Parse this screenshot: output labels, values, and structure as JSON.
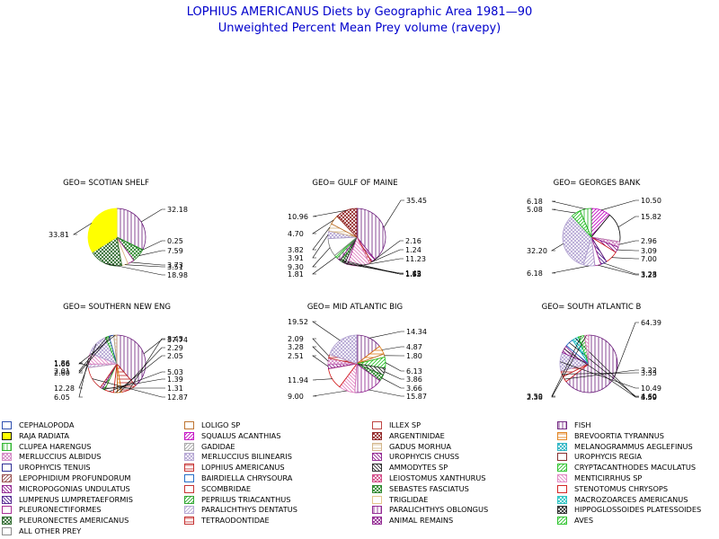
{
  "title": "LOPHIUS AMERICANUS Diets by Geographic Area 1981—90",
  "subtitle": "Unweighted Percent Mean Prey volume (ravepy)",
  "chart_data": {
    "type": "pie",
    "categories": [
      "CEPHALOPODA",
      "LOLIGO SP",
      "ILLEX SP",
      "FISH",
      "RAJA RADIATA",
      "SQUALUS ACANTHIAS",
      "ARGENTINIDAE",
      "BREVOORTIA TYRANNUS",
      "CLUPEA HARENGUS",
      "GADIDAE",
      "GADUS MORHUA",
      "MELANOGRAMMUS AEGLEFINUS",
      "MERLUCCIUS ALBIDUS",
      "MERLUCCIUS BILINEARIS",
      "UROPHYCIS CHUSS",
      "UROPHYCIS REGIA",
      "UROPHYCIS TENUIS",
      "LOPHIUS AMERICANUS",
      "AMMODYTES SP",
      "CRYPTACANTHODES MACULATUS",
      "LEPOPHIDIUM PROFUNDORUM",
      "BAIRDIELLA CHRYSOURA",
      "LEIOSTOMUS XANTHURUS",
      "MENTICIRRHUS SP",
      "MICROPOGONIAS UNDULATUS",
      "SCOMBRIDAE",
      "SEBASTES FASCIATUS",
      "STENOTOMUS CHRYSOPS",
      "LUMPENUS LUMPRETAEFORMIS",
      "PEPRILUS TRIACANTHUS",
      "TRIGLIDAE",
      "MACROZOARCES AMERICANUS",
      "PLEURONECTIFORMES",
      "PARALICHTHYS DENTATUS",
      "PARALICHTHYS OBLONGUS",
      "HIPPOGLOSSOIDES PLATESSOIDES",
      "PLEURONECTES AMERICANUS",
      "TETRAODONTIDAE",
      "ANIMAL REMAINS",
      "AVES",
      "ALL OTHER PREY"
    ],
    "pies": [
      {
        "label": "GEO= SCOTIAN SHELF",
        "slices": [
          {
            "prey": "FISH",
            "value": 32.18
          },
          {
            "prey": "CRYPTACANTHODES MACULATUS",
            "value": 0.25
          },
          {
            "prey": "SEBASTES FASCIATUS",
            "value": 7.59
          },
          {
            "prey": "PLEURONECTIFORMES",
            "value": 3.73
          },
          {
            "prey": "TRIGLIDAE",
            "value": 3.51
          },
          {
            "prey": "PLEURONECTES AMERICANUS",
            "value": 18.98
          },
          {
            "prey": "RAJA RADIATA",
            "value": 33.81
          }
        ]
      },
      {
        "label": "GEO= GULF OF MAINE",
        "slices": [
          {
            "prey": "FISH",
            "value": 35.45
          },
          {
            "prey": "UROPHYCIS CHUSS",
            "value": 2.16
          },
          {
            "prey": "LOPHIUS AMERICANUS",
            "value": 1.24
          },
          {
            "prey": "MENTICIRRHUS SP",
            "value": 11.23
          },
          {
            "prey": "PLEURONECTIFORMES",
            "value": 1.42
          },
          {
            "prey": "AMMODYTES SP",
            "value": 1.43
          },
          {
            "prey": "SEBASTES FASCIATUS",
            "value": 1.55
          },
          {
            "prey": "PARALICHTHYS OBLONGUS",
            "value": 1.73
          },
          {
            "prey": "CRYPTACANTHODES MACULATUS",
            "value": 1.81
          },
          {
            "prey": "ALL OTHER PREY",
            "value": 9.3
          },
          {
            "prey": "MERLUCCIUS BILINEARIS",
            "value": 3.91
          },
          {
            "prey": "GADUS MORHUA",
            "value": 3.82
          },
          {
            "prey": "LOLIGO SP",
            "value": 4.7
          },
          {
            "prey": "ARGENTINIDAE",
            "value": 10.96
          }
        ]
      },
      {
        "label": "GEO= GEORGES BANK",
        "slices": [
          {
            "prey": "SQUALUS ACANTHIAS",
            "value": 10.5
          },
          {
            "prey": "MACROZOAR CES AMERICANUS",
            "value": 15.82
          },
          {
            "prey": "MERLUCCIUS ALBIDUS",
            "value": 2.96
          },
          {
            "prey": "UROPHYCIS CHUSS",
            "value": 3.09
          },
          {
            "prey": "STENOTOMUS CHRYSOPS",
            "value": 7.0
          },
          {
            "prey": "LUMPENUS LUMPRETAEFORMIS",
            "value": 3.28
          },
          {
            "prey": "PLEURONECTIFORMES",
            "value": 3.23
          },
          {
            "prey": "PARALICHTHYS DENTATUS",
            "value": 6.18
          },
          {
            "prey": "MERLUCCIUS BILINEARIS",
            "value": 32.2
          },
          {
            "prey": "CRYPTACANTHODES MACULATUS",
            "value": 5.08
          },
          {
            "prey": "CLUPEA HARENGUS",
            "value": 6.18
          }
        ]
      },
      {
        "label": "GEO= SOUTHERN NEW ENG",
        "slices": [
          {
            "prey": "FISH",
            "value": 37.74
          },
          {
            "prey": "LOPHIUS AMERICANUS",
            "value": 8.45
          },
          {
            "prey": "BREVOORTIA TYRANNUS",
            "value": 2.29
          },
          {
            "prey": "LOLIGO SP",
            "value": 2.05
          },
          {
            "prey": "STENOTOMUS CHRYSOPS",
            "value": 5.03
          },
          {
            "prey": "PEPRILUS TRIACANTHUS",
            "value": 1.39
          },
          {
            "prey": "UROPHYCIS CHUSS",
            "value": 1.31
          },
          {
            "prey": "SCOMBRIDAE",
            "value": 12.87
          },
          {
            "prey": "PARALICHTHYS DENTATUS",
            "value": 1.86
          },
          {
            "prey": "MENTICIRRHUS SP",
            "value": 6.05
          },
          {
            "prey": "MERLUCCIUS BILINEARIS",
            "value": 12.28
          },
          {
            "prey": "CRYPTACANTHODES MACULATUS",
            "value": 2.01
          },
          {
            "prey": "CEPHALOPODA",
            "value": 2.6
          },
          {
            "prey": "GADUS MORHUA",
            "value": 1.66
          }
        ]
      },
      {
        "label": "GEO= MID ATLANTIC BIG",
        "slices": [
          {
            "prey": "FISH",
            "value": 14.34
          },
          {
            "prey": "BREVOORTIA TYRANNUS",
            "value": 4.87
          },
          {
            "prey": "LOLIGO SP",
            "value": 1.8
          },
          {
            "prey": "CRYPTACANTHODES MACULATUS",
            "value": 6.13
          },
          {
            "prey": "AMMODYTES SP",
            "value": 3.86
          },
          {
            "prey": "SEBASTES FASCIATUS",
            "value": 3.66
          },
          {
            "prey": "PARALICHTHYS OBLONGUS",
            "value": 15.87
          },
          {
            "prey": "MENTICIRRHUS SP",
            "value": 9.0
          },
          {
            "prey": "STENOTOMUS CHRYSOPS",
            "value": 11.94
          },
          {
            "prey": "UROPHYCIS CHUSS",
            "value": 2.51
          },
          {
            "prey": "MERLUCCIUS ALBIDUS",
            "value": 3.28
          },
          {
            "prey": "LOPHIUS AMERICANUS",
            "value": 2.09
          },
          {
            "prey": "MERLUCCIUS BILINEARIS",
            "value": 19.52
          }
        ]
      },
      {
        "label": "GEO= SOUTH ATLANTIC B",
        "slices": [
          {
            "prey": "FISH",
            "value": 64.39
          },
          {
            "prey": "STENOTOMUS CHRYSOPS",
            "value": 3.22
          },
          {
            "prey": "LOPHIUS AMERICANUS",
            "value": 3.33
          },
          {
            "prey": "MERLUCCIUS BILINEARIS",
            "value": 10.49
          },
          {
            "prey": "MICROPOGONIAS UNDULATUS",
            "value": 4.5
          },
          {
            "prey": "BAIRDIELLA CHRYSOURA",
            "value": 4.6
          },
          {
            "prey": "MACROZOARCES AMERICANUS",
            "value": 3.59
          },
          {
            "prey": "CRYPTACANTHODES MACULATUS",
            "value": 3.5
          },
          {
            "prey": "MENTICIRRHUS SP",
            "value": 2.38
          }
        ]
      }
    ],
    "slice_labels": [
      [
        {
          "text": "32.18"
        },
        {
          "text": "0.25"
        },
        {
          "text": "7.59"
        },
        {
          "text": "3.73"
        },
        {
          "text": "3.51"
        },
        {
          "text": "18.98"
        },
        {
          "text": "33.81"
        }
      ],
      [
        {
          "text": "35.45"
        },
        {
          "text": "2.16"
        },
        {
          "text": "1.24"
        },
        {
          "text": "11.23"
        },
        {
          "text": "1.42"
        },
        {
          "text": "1.43"
        },
        {
          "text": "1.55"
        },
        {
          "text": "1.73"
        },
        {
          "text": "1.81"
        },
        {
          "text": "9.30"
        },
        {
          "text": "3.91"
        },
        {
          "text": "3.82"
        },
        {
          "text": "4.70"
        },
        {
          "text": "10.96"
        }
      ],
      [
        {
          "text": "10.50"
        },
        {
          "text": "15.82"
        },
        {
          "text": "2.96"
        },
        {
          "text": "3.09"
        },
        {
          "text": "7.00"
        },
        {
          "text": "3.28"
        },
        {
          "text": "3.23"
        },
        {
          "text": "6.18"
        },
        {
          "text": "32.20"
        },
        {
          "text": "5.08"
        },
        {
          "text": "6.18"
        }
      ],
      [
        {
          "text": "37.74"
        },
        {
          "text": "8.45"
        },
        {
          "text": "2.29"
        },
        {
          "text": "2.05"
        },
        {
          "text": "5.03"
        },
        {
          "text": "1.39"
        },
        {
          "text": "1.31"
        },
        {
          "text": "12.87"
        },
        {
          "text": "1.86"
        },
        {
          "text": "6.05"
        },
        {
          "text": "12.28"
        },
        {
          "text": "2.01"
        },
        {
          "text": "2.60"
        },
        {
          "text": "1.66"
        }
      ],
      [
        {
          "text": "14.34"
        },
        {
          "text": "4.87"
        },
        {
          "text": "1.80"
        },
        {
          "text": "6.13"
        },
        {
          "text": "3.86"
        },
        {
          "text": "3.66"
        },
        {
          "text": "15.87"
        },
        {
          "text": "9.00"
        },
        {
          "text": "11.94"
        },
        {
          "text": "2.51"
        },
        {
          "text": "3.28"
        },
        {
          "text": "2.09"
        },
        {
          "text": "19.52"
        }
      ],
      [
        {
          "text": "64.39"
        },
        {
          "text": "3.22"
        },
        {
          "text": "3.33"
        },
        {
          "text": "10.49"
        },
        {
          "text": "4.50"
        },
        {
          "text": "4.60"
        },
        {
          "text": "3.59"
        },
        {
          "text": "3.50"
        },
        {
          "text": "2.38"
        }
      ]
    ]
  },
  "legend": [
    {
      "label": "CEPHALOPODA",
      "color": "#1a3fa8",
      "pattern": "empty"
    },
    {
      "label": "LOLIGO SP",
      "color": "#b8651b",
      "pattern": "empty"
    },
    {
      "label": "ILLEX SP",
      "color": "#b8312f",
      "pattern": "empty"
    },
    {
      "label": "FISH",
      "color": "#6a1b7a",
      "pattern": "vline"
    },
    {
      "label": "RAJA RADIATA",
      "color": "#ffff00",
      "pattern": "solid"
    },
    {
      "label": "SQUALUS ACANTHIAS",
      "color": "#c000c0",
      "pattern": "diag"
    },
    {
      "label": "ARGENTINIDAE",
      "color": "#8b1a1a",
      "pattern": "cross"
    },
    {
      "label": "BREVOORTIA TYRANNUS",
      "color": "#e07a10",
      "pattern": "hline"
    },
    {
      "label": "CLUPEA HARENGUS",
      "color": "#20b020",
      "pattern": "vline"
    },
    {
      "label": "GADIDAE",
      "color": "#a0a0a0",
      "pattern": "diag"
    },
    {
      "label": "GADUS MORHUA",
      "color": "#d0b080",
      "pattern": "hline"
    },
    {
      "label": "MELANOGRAMMUS AEGLEFINUS",
      "color": "#20b0c0",
      "pattern": "cross"
    },
    {
      "label": "MERLUCCIUS ALBIDUS",
      "color": "#d080c0",
      "pattern": "cross"
    },
    {
      "label": "MERLUCCIUS BILINEARIS",
      "color": "#b0a0d0",
      "pattern": "cross"
    },
    {
      "label": "UROPHYCIS CHUSS",
      "color": "#8b1a8b",
      "pattern": "diagr"
    },
    {
      "label": "UROPHYCIS REGIA",
      "color": "#7a1a1a",
      "pattern": "empty"
    },
    {
      "label": "UROPHYCIS TENUIS",
      "color": "#1a1a8b",
      "pattern": "empty"
    },
    {
      "label": "LOPHIUS AMERICANUS",
      "color": "#c02020",
      "pattern": "hline"
    },
    {
      "label": "AMMODYTES SP",
      "color": "#202020",
      "pattern": "diagr"
    },
    {
      "label": "CRYPTACANTHODES MACULATUS",
      "color": "#20c020",
      "pattern": "diag"
    },
    {
      "label": "LEPOPHIDIUM PROFUNDORUM",
      "color": "#904040",
      "pattern": "diag"
    },
    {
      "label": "BAIRDIELLA CHRYSOURA",
      "color": "#1060c0",
      "pattern": "empty"
    },
    {
      "label": "LEIOSTOMUS XANTHURUS",
      "color": "#d04080",
      "pattern": "cross"
    },
    {
      "label": "MENTICIRRHUS SP",
      "color": "#e080c0",
      "pattern": "diagr"
    },
    {
      "label": "MICROPOGONIAS UNDULATUS",
      "color": "#8b1a8b",
      "pattern": "diagr"
    },
    {
      "label": "SCOMBRIDAE",
      "color": "#c02020",
      "pattern": "empty"
    },
    {
      "label": "SEBASTES FASCIATUS",
      "color": "#208020",
      "pattern": "cross"
    },
    {
      "label": "STENOTOMUS CHRYSOPS",
      "color": "#d01010",
      "pattern": "empty"
    },
    {
      "label": "LUMPENUS LUMPRETAEFORMIS",
      "color": "#4a1a8b",
      "pattern": "diagr"
    },
    {
      "label": "PEPRILUS TRIACANTHUS",
      "color": "#20a020",
      "pattern": "diag"
    },
    {
      "label": "TRIGLIDAE",
      "color": "#e0c080",
      "pattern": "empty"
    },
    {
      "label": "MACROZOARCES AMERICANUS",
      "color": "#20c0c0",
      "pattern": "cross"
    },
    {
      "label": "PLEURONECTIFORMES",
      "color": "#a01a8b",
      "pattern": "empty"
    },
    {
      "label": "PARALICHTHYS DENTATUS",
      "color": "#b0a0d0",
      "pattern": "diag"
    },
    {
      "label": "PARALICHTHYS OBLONGUS",
      "color": "#8b1a8b",
      "pattern": "vline"
    },
    {
      "label": "HIPPOGLOSSOIDES PLATESSOIDES",
      "color": "#202020",
      "pattern": "cross"
    },
    {
      "label": "PLEURONECTES AMERICANUS",
      "color": "#206020",
      "pattern": "cross"
    },
    {
      "label": "TETRAODONTIDAE",
      "color": "#c02020",
      "pattern": "hline"
    },
    {
      "label": "ANIMAL REMAINS",
      "color": "#8b1a8b",
      "pattern": "cross"
    },
    {
      "label": "AVES",
      "color": "#20c020",
      "pattern": "diag"
    },
    {
      "label": "ALL OTHER PREY",
      "color": "#808080",
      "pattern": "empty"
    }
  ]
}
